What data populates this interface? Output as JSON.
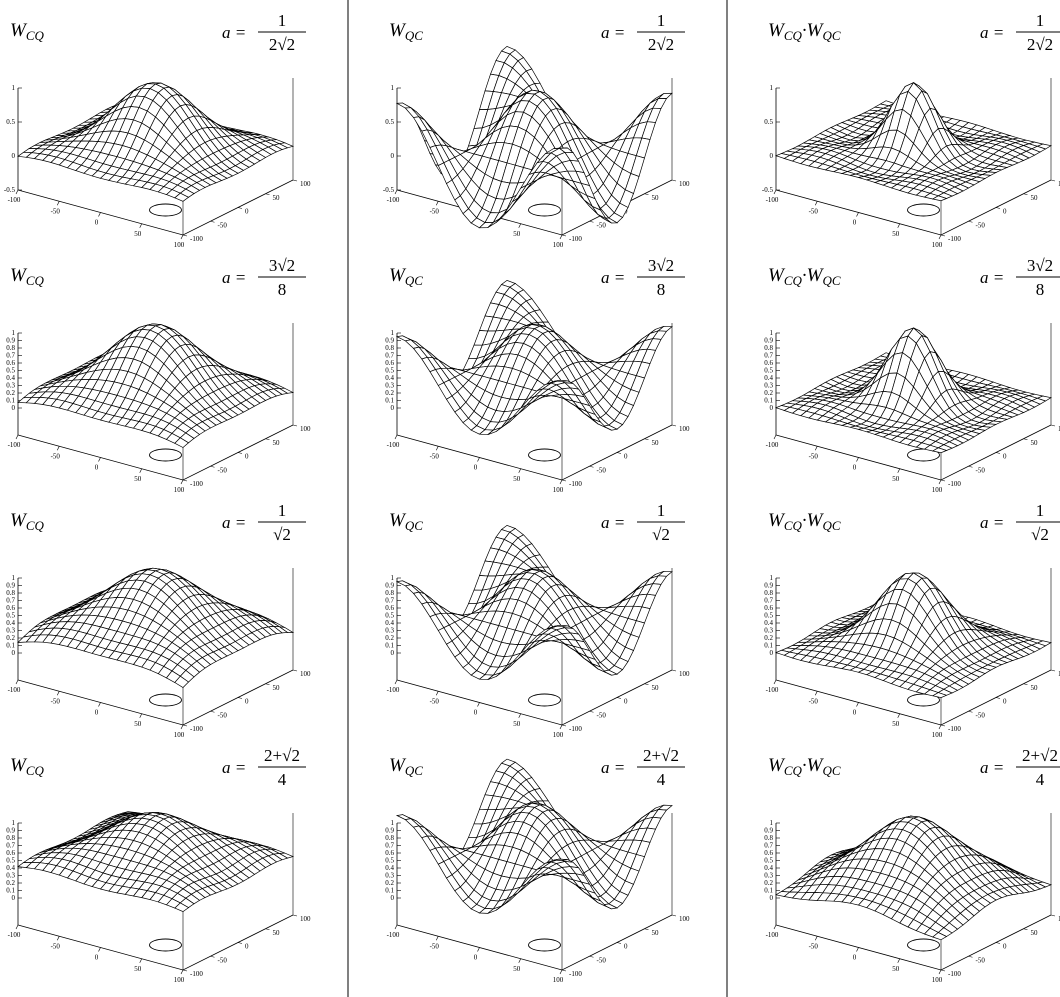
{
  "columns": [
    {
      "label": {
        "main": "W",
        "sub": "CQ"
      }
    },
    {
      "label": {
        "main": "W",
        "sub": "QC"
      }
    },
    {
      "label": {
        "main": "W",
        "sub": "CQ",
        "dot": "·",
        "main2": "W",
        "sub2": "QC"
      }
    }
  ],
  "rows": [
    {
      "formula": {
        "lhs": "a =",
        "numerator": "1",
        "denominator": "2√2"
      },
      "zticks": [
        1,
        0.5,
        0,
        -0.5
      ]
    },
    {
      "formula": {
        "lhs": "a =",
        "numerator": "3√2",
        "denominator": "8"
      },
      "zticks": [
        1,
        0.9,
        0.8,
        0.7,
        0.6,
        0.5,
        0.4,
        0.3,
        0.2,
        0.1,
        0
      ]
    },
    {
      "formula": {
        "lhs": "a =",
        "numerator": "1",
        "denominator": "√2"
      },
      "zticks": [
        1,
        0.9,
        0.8,
        0.7,
        0.6,
        0.5,
        0.4,
        0.3,
        0.2,
        0.1,
        0
      ]
    },
    {
      "formula": {
        "lhs": "a =",
        "numerator": "2+√2",
        "denominator": "4"
      },
      "zticks": [
        1,
        0.9,
        0.8,
        0.7,
        0.6,
        0.5,
        0.4,
        0.3,
        0.2,
        0.1,
        0
      ]
    }
  ],
  "xticks": [
    -100,
    -50,
    0,
    50,
    100
  ],
  "yticks": [
    -100,
    -50,
    0,
    50,
    100
  ]
}
